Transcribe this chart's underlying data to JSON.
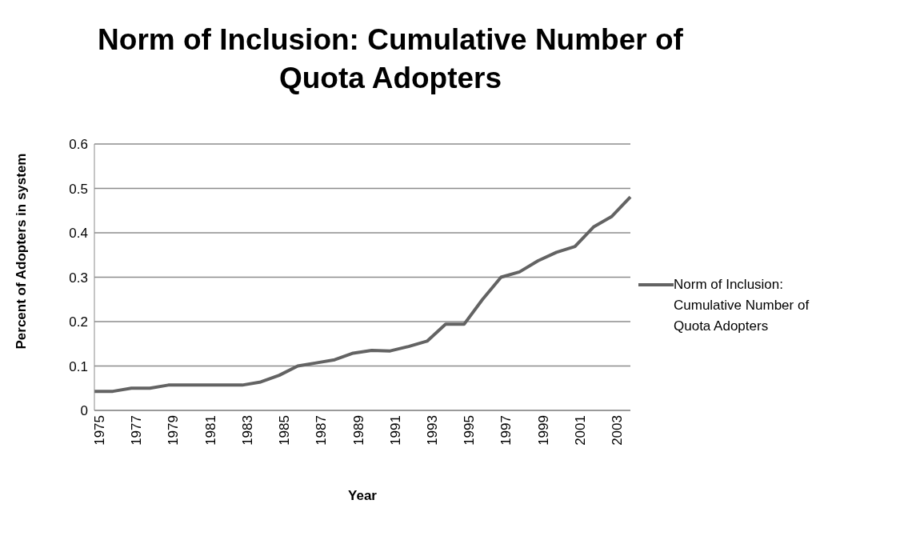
{
  "chart_data": {
    "type": "line",
    "title": "Norm of Inclusion: Cumulative Number of Quota Adopters",
    "xlabel": "Year",
    "ylabel": "Percent  of Adopters in system",
    "categories": [
      "1975",
      null,
      "1977",
      null,
      "1979",
      null,
      "1981",
      null,
      "1983",
      null,
      "1985",
      null,
      "1987",
      null,
      "1989",
      null,
      "1991",
      null,
      "1993",
      null,
      "1995",
      null,
      "1997",
      null,
      "1999",
      null,
      "2001",
      null,
      "2003",
      null
    ],
    "series": [
      {
        "name": "Norm of Inclusion: Cumulative Number of Quota Adopters",
        "color": "#636363",
        "values": [
          0.043,
          0.043,
          0.05,
          0.05,
          0.057,
          0.057,
          0.057,
          0.057,
          0.057,
          0.064,
          0.079,
          0.1,
          0.107,
          0.114,
          0.129,
          0.135,
          0.134,
          0.144,
          0.156,
          0.194,
          0.194,
          0.25,
          0.3,
          0.312,
          0.337,
          0.356,
          0.369,
          0.413,
          0.437,
          0.481
        ]
      }
    ],
    "ylim": [
      0,
      0.6
    ],
    "yticks": [
      0,
      0.1,
      0.2,
      0.3,
      0.4,
      0.5,
      0.6
    ],
    "grid": "y",
    "legend": "right",
    "marker": "none",
    "line_style": "solid"
  }
}
